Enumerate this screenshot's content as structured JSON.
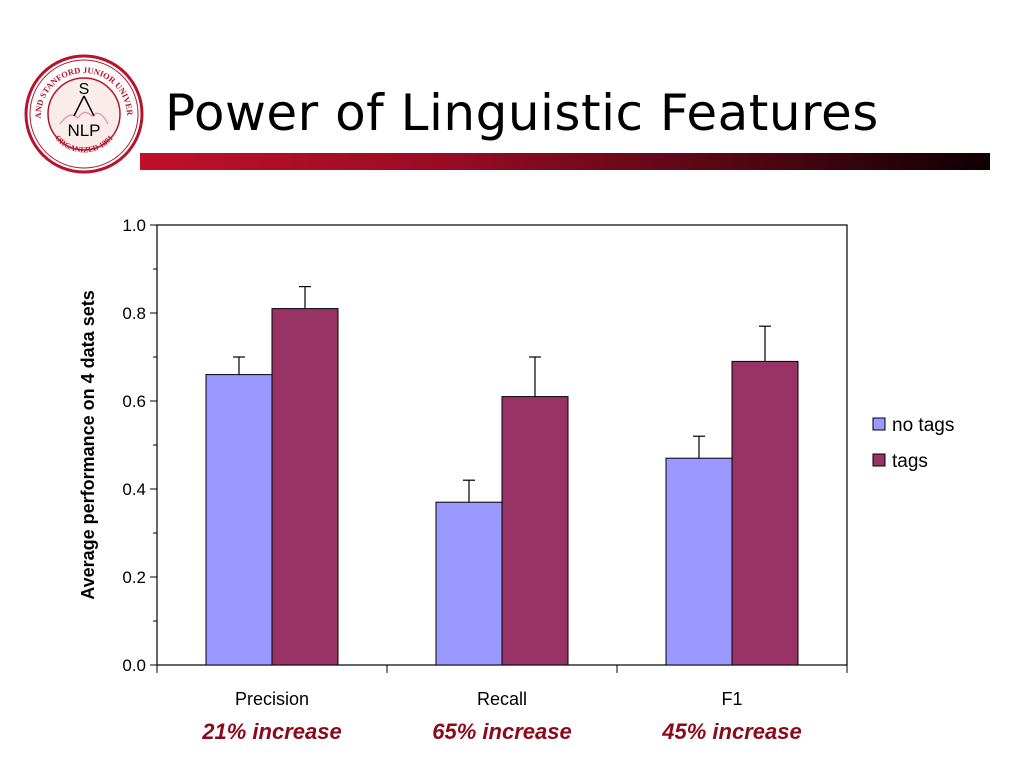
{
  "slide": {
    "title": "Power of Linguistic Features",
    "logo": {
      "ring_text": "LELAND STANFORD JUNIOR UNIVERSITY",
      "bottom_text": "ORGANIZED 1891",
      "letter_top": "S",
      "letter_bottom": "NLP"
    }
  },
  "colors": {
    "no_tags": "#9999ff",
    "tags": "#993366",
    "annotation": "#8b0a1a",
    "rule_start": "#c0102a",
    "logo": "#b5152b"
  },
  "chart_data": {
    "type": "bar",
    "categories": [
      "Precision",
      "Recall",
      "F1"
    ],
    "series": [
      {
        "name": "no tags",
        "values": [
          0.66,
          0.37,
          0.47
        ],
        "error_upper": [
          0.7,
          0.42,
          0.52
        ]
      },
      {
        "name": "tags",
        "values": [
          0.81,
          0.61,
          0.69
        ],
        "error_upper": [
          0.86,
          0.7,
          0.77
        ]
      }
    ],
    "ylabel": "Average performance on 4 data sets",
    "xlabel": "",
    "ylim": [
      0,
      1.0
    ],
    "yticks": [
      "0.0",
      "0.2",
      "0.4",
      "0.6",
      "0.8",
      "1.0"
    ],
    "legend_position": "right",
    "grid": false,
    "annotations": [
      "21% increase",
      "65% increase",
      "45% increase"
    ]
  }
}
